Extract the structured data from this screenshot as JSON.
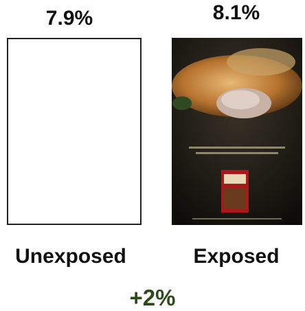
{
  "panels": [
    {
      "value": "7.9%",
      "label": "Unexposed"
    },
    {
      "value": "8.1%",
      "label": "Exposed"
    }
  ],
  "difference": "+2%"
}
